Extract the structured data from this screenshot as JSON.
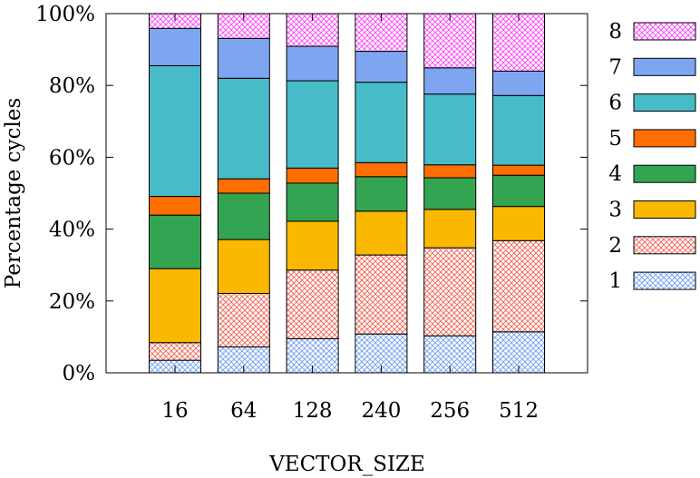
{
  "chart_data": {
    "type": "bar",
    "stacked": true,
    "normalized": true,
    "title": "",
    "xlabel": "VECTOR_SIZE",
    "ylabel": "Percentage cycles",
    "ylim": [
      0,
      100
    ],
    "yticks": [
      "0%",
      "20%",
      "40%",
      "60%",
      "80%",
      "100%"
    ],
    "ytick_values": [
      0,
      20,
      40,
      60,
      80,
      100
    ],
    "categories": [
      "16",
      "64",
      "128",
      "240",
      "256",
      "512"
    ],
    "legend_position": "right",
    "series": [
      {
        "name": "1",
        "color": "#7ea6f0",
        "pattern": "crosshatch",
        "values": [
          3.5,
          7.2,
          9.5,
          10.8,
          10.3,
          11.4
        ]
      },
      {
        "name": "2",
        "color": "#f07262",
        "pattern": "crosshatch",
        "values": [
          4.9,
          14.9,
          19.1,
          22.0,
          24.5,
          25.4
        ]
      },
      {
        "name": "3",
        "color": "#fab800",
        "pattern": "solid",
        "values": [
          20.6,
          15.0,
          13.6,
          12.2,
          10.7,
          9.5
        ]
      },
      {
        "name": "4",
        "color": "#33a452",
        "pattern": "solid",
        "values": [
          14.9,
          12.9,
          10.6,
          9.6,
          8.8,
          8.7
        ]
      },
      {
        "name": "5",
        "color": "#fe6e00",
        "pattern": "solid",
        "values": [
          5.2,
          4.0,
          4.2,
          3.9,
          3.6,
          2.8
        ]
      },
      {
        "name": "6",
        "color": "#47bbc8",
        "pattern": "solid",
        "values": [
          36.4,
          28.0,
          24.3,
          22.4,
          19.7,
          19.4
        ]
      },
      {
        "name": "7",
        "color": "#7ea6f0",
        "pattern": "solid",
        "values": [
          10.4,
          11.1,
          9.6,
          8.6,
          7.3,
          6.8
        ]
      },
      {
        "name": "8",
        "color": "#fe52fe",
        "pattern": "crosshatch",
        "values": [
          4.1,
          6.9,
          9.1,
          10.5,
          15.1,
          16.0
        ]
      }
    ]
  }
}
